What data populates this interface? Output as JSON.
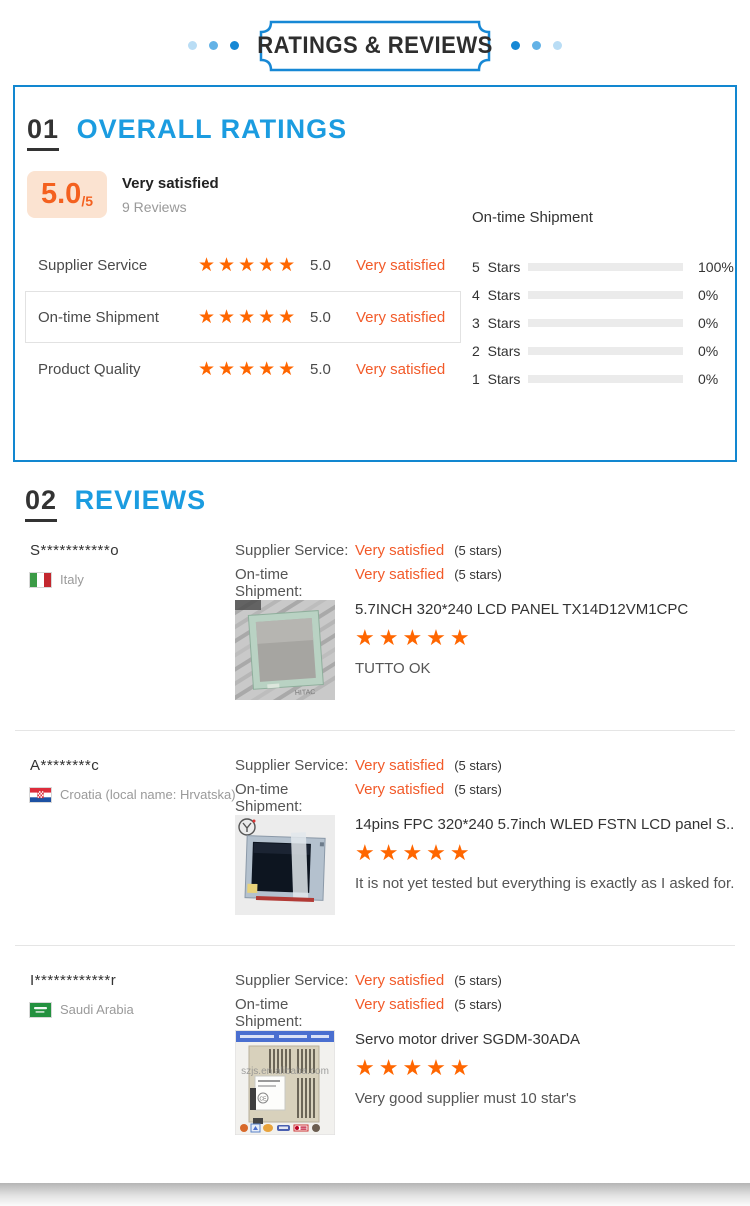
{
  "header": {
    "title": "RATINGS & REVIEWS"
  },
  "overall": {
    "num": "01",
    "title": "OVERALL RATINGS",
    "score": "5.0",
    "of": "/5",
    "verdict": "Very satisfied",
    "count": "9 Reviews",
    "metrics": [
      {
        "label": "Supplier Service",
        "stars": "★★★★★",
        "score": "5.0",
        "verdict": "Very satisfied"
      },
      {
        "label": "On-time Shipment",
        "stars": "★★★★★",
        "score": "5.0",
        "verdict": "Very satisfied"
      },
      {
        "label": "Product Quality",
        "stars": "★★★★★",
        "score": "5.0",
        "verdict": "Very satisfied"
      }
    ],
    "distribution": {
      "title": "On-time Shipment",
      "rows": [
        {
          "label": "5 Stars",
          "percent": 100,
          "pct": "100%"
        },
        {
          "label": "4 Stars",
          "percent": 0,
          "pct": "0%"
        },
        {
          "label": "3 Stars",
          "percent": 0,
          "pct": "0%"
        },
        {
          "label": "2 Stars",
          "percent": 0,
          "pct": "0%"
        },
        {
          "label": "1 Stars",
          "percent": 0,
          "pct": "0%"
        }
      ]
    }
  },
  "reviews": {
    "num": "02",
    "title": "REVIEWS",
    "items": [
      {
        "user": "S***********o",
        "country": "Italy",
        "service_label": "Supplier Service:",
        "service_value": "Very satisfied",
        "service_note": "(5 stars)",
        "shipment_label": "On-time Shipment:",
        "shipment_value": "Very satisfied",
        "shipment_note": "(5 stars)",
        "product_title": "5.7INCH 320*240 LCD PANEL TX14D12VM1CPC",
        "stars": "★★★★★",
        "comment": "TUTTO OK"
      },
      {
        "user": "A********c",
        "country": "Croatia (local name: Hrvatska)",
        "service_label": "Supplier Service:",
        "service_value": "Very satisfied",
        "service_note": "(5 stars)",
        "shipment_label": "On-time Shipment:",
        "shipment_value": "Very satisfied",
        "shipment_note": "(5 stars)",
        "product_title": "14pins FPC 320*240 5.7inch WLED FSTN LCD panel S...",
        "stars": "★★★★★",
        "comment": "It is not yet tested but everything is exactly as I asked for."
      },
      {
        "user": "I************r",
        "country": "Saudi Arabia",
        "service_label": "Supplier Service:",
        "service_value": "Very satisfied",
        "service_note": "(5 stars)",
        "shipment_label": "On-time Shipment:",
        "shipment_value": "Very satisfied",
        "shipment_note": "(5 stars)",
        "product_title": "Servo motor driver SGDM-30ADA",
        "stars": "★★★★★",
        "comment": "Very good supplier must 10 star's",
        "watermark": "szjs.en.alibaba.com"
      }
    ]
  },
  "colors": {
    "accent_blue": "#1287d0",
    "heading_blue": "#1b9ce0",
    "star_orange": "#ff6600",
    "bar_orange": "#ff6a00",
    "verdict_orange": "#f25a29",
    "score_orange": "#f4611f",
    "score_bg": "#fbe3d1"
  }
}
